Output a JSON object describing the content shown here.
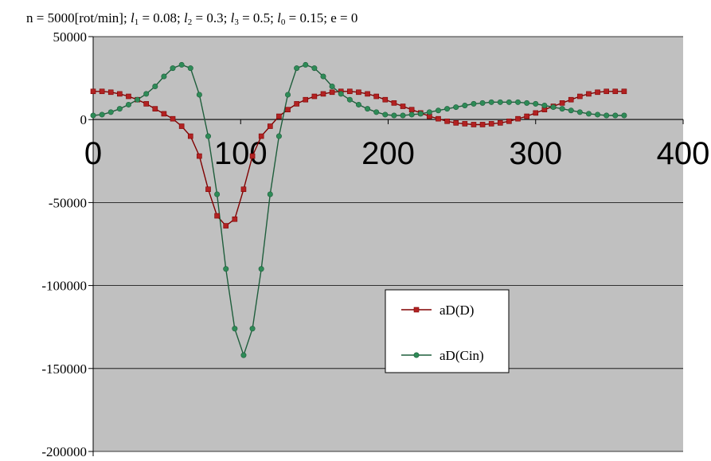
{
  "chart_data": {
    "type": "line",
    "title": {
      "n": "n = 5000[rot/min]",
      "l1_label": "l",
      "l1_sub": "1",
      "l1_value": " = 0.08",
      "l2_label": "l",
      "l2_sub": "2",
      "l2_value": " = 0.3",
      "l3_label": "l",
      "l3_sub": "3",
      "l3_value": " = 0.5",
      "l0_label": "l",
      "l0_sub": "0",
      "l0_value": " = 0.15",
      "e": "e = 0"
    },
    "xlabel": "",
    "ylabel": "",
    "xlim": [
      0,
      400
    ],
    "ylim": [
      -200000,
      50000
    ],
    "x_ticks": [
      0,
      100,
      200,
      300,
      400
    ],
    "y_ticks": [
      50000,
      0,
      -50000,
      -100000,
      -150000,
      -200000
    ],
    "grid": "horizontal",
    "plot_background": "#c0c0c0",
    "legend_placement": "center-right",
    "x": [
      0,
      6,
      12,
      18,
      24,
      30,
      36,
      42,
      48,
      54,
      60,
      66,
      72,
      78,
      84,
      90,
      96,
      102,
      108,
      114,
      120,
      126,
      132,
      138,
      144,
      150,
      156,
      162,
      168,
      174,
      180,
      186,
      192,
      198,
      204,
      210,
      216,
      222,
      228,
      234,
      240,
      246,
      252,
      258,
      264,
      270,
      276,
      282,
      288,
      294,
      300,
      306,
      312,
      318,
      324,
      330,
      336,
      342,
      348,
      354,
      360
    ],
    "series": [
      {
        "name": "aD(D)",
        "color": "#b22222",
        "marker": "square",
        "values": [
          17000,
          17000,
          16500,
          15500,
          14000,
          12000,
          9500,
          6500,
          3500,
          500,
          -4000,
          -10000,
          -22000,
          -42000,
          -58000,
          -64000,
          -60000,
          -42000,
          -22000,
          -10000,
          -4000,
          2000,
          6000,
          9500,
          12000,
          14000,
          15500,
          16500,
          17000,
          17000,
          16500,
          15500,
          14000,
          12000,
          10000,
          8000,
          6000,
          4000,
          2000,
          500,
          -1000,
          -2000,
          -2500,
          -3000,
          -3000,
          -2500,
          -2000,
          -1000,
          500,
          2000,
          4000,
          6000,
          8000,
          10000,
          12000,
          14000,
          15500,
          16500,
          17000,
          17000,
          17000
        ]
      },
      {
        "name": "aD(Cin)",
        "color": "#2e8b57",
        "marker": "circle",
        "values": [
          2500,
          3000,
          4500,
          6500,
          9000,
          12000,
          15500,
          20000,
          26000,
          31000,
          33000,
          31000,
          15000,
          -10000,
          -45000,
          -90000,
          -126000,
          -142000,
          -126000,
          -90000,
          -45000,
          -10000,
          15000,
          31000,
          33000,
          31000,
          26000,
          20000,
          15500,
          12000,
          9000,
          6500,
          4500,
          3000,
          2500,
          2500,
          3000,
          3500,
          4500,
          5500,
          6500,
          7500,
          8500,
          9500,
          10000,
          10500,
          10500,
          10500,
          10500,
          10000,
          9500,
          8500,
          7500,
          6500,
          5500,
          4500,
          3500,
          3000,
          2500,
          2500,
          2500
        ]
      }
    ]
  }
}
